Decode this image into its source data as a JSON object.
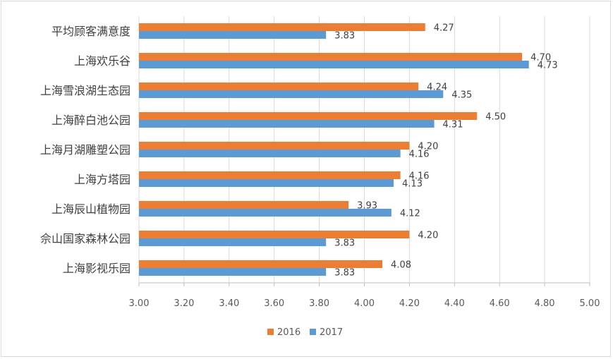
{
  "chart_data": {
    "type": "bar",
    "orientation": "horizontal",
    "categories": [
      "平均顾客满意度",
      "上海欢乐谷",
      "上海雪浪湖生态园",
      "上海醉白池公园",
      "上海月湖雕塑公园",
      "上海方塔园",
      "上海辰山植物园",
      "佘山国家森林公园",
      "上海影视乐园"
    ],
    "series": [
      {
        "name": "2016",
        "color": "#ED7D31",
        "values": [
          4.27,
          4.7,
          4.24,
          4.5,
          4.2,
          4.16,
          3.93,
          4.2,
          4.08
        ],
        "labels": [
          "4.27",
          "4.70",
          "4.24",
          "4.50",
          "4.20",
          "4.16",
          "3.93",
          "4.20",
          "4.08"
        ]
      },
      {
        "name": "2017",
        "color": "#5B9BD5",
        "values": [
          3.83,
          4.73,
          4.35,
          4.31,
          4.16,
          4.13,
          4.12,
          3.83,
          3.83
        ],
        "labels": [
          "3.83",
          "4.73",
          "4.35",
          "4.31",
          "4.16",
          "4.13",
          "4.12",
          "3.83",
          "3.83"
        ]
      }
    ],
    "xlim": [
      3.0,
      5.0
    ],
    "x_ticks": [
      "3.00",
      "3.20",
      "3.40",
      "3.60",
      "3.80",
      "4.00",
      "4.20",
      "4.40",
      "4.60",
      "4.80",
      "5.00"
    ],
    "grid": true,
    "legend_position": "bottom",
    "title": "",
    "xlabel": "",
    "ylabel": ""
  }
}
